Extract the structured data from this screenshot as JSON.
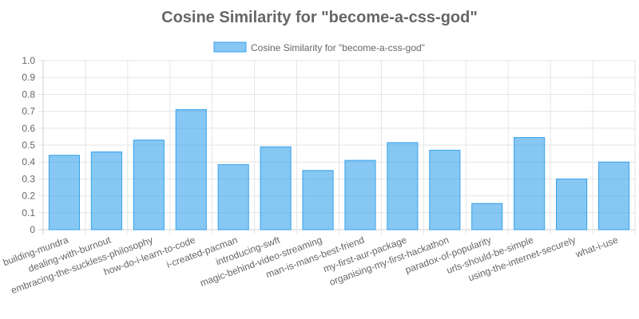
{
  "chart_data": {
    "type": "bar",
    "title": "Cosine Similarity for \"become-a-css-god\"",
    "categories": [
      "building-mundra",
      "dealing-with-burnout",
      "embracing-the-suckless-philosophy",
      "how-do-i-learn-to-code",
      "i-created-pacman",
      "introducing-swft",
      "magic-behind-video-streaming",
      "man-is-mans-best-friend",
      "my-first-aur-package",
      "organising-my-first-hackathon",
      "paradox-of-popularity",
      "urls-should-be-simple",
      "using-the-internet-securely",
      "what-i-use"
    ],
    "series": [
      {
        "name": "Cosine Similarity for \"become-a-css-god\"",
        "values": [
          0.44,
          0.46,
          0.53,
          0.71,
          0.385,
          0.49,
          0.35,
          0.41,
          0.515,
          0.47,
          0.155,
          0.545,
          0.3,
          0.4
        ]
      }
    ],
    "ylim": [
      0,
      1
    ],
    "yticks": [
      "0",
      "0.1",
      "0.2",
      "0.3",
      "0.4",
      "0.5",
      "0.6",
      "0.7",
      "0.8",
      "0.9",
      "1.0"
    ],
    "grid": true,
    "legend_position": "top",
    "colors": {
      "bar_fill": "rgba(54, 162, 235, 0.6)",
      "bar_border": "#36a2eb",
      "text": "#666666",
      "grid": "#e5e5e5"
    }
  }
}
